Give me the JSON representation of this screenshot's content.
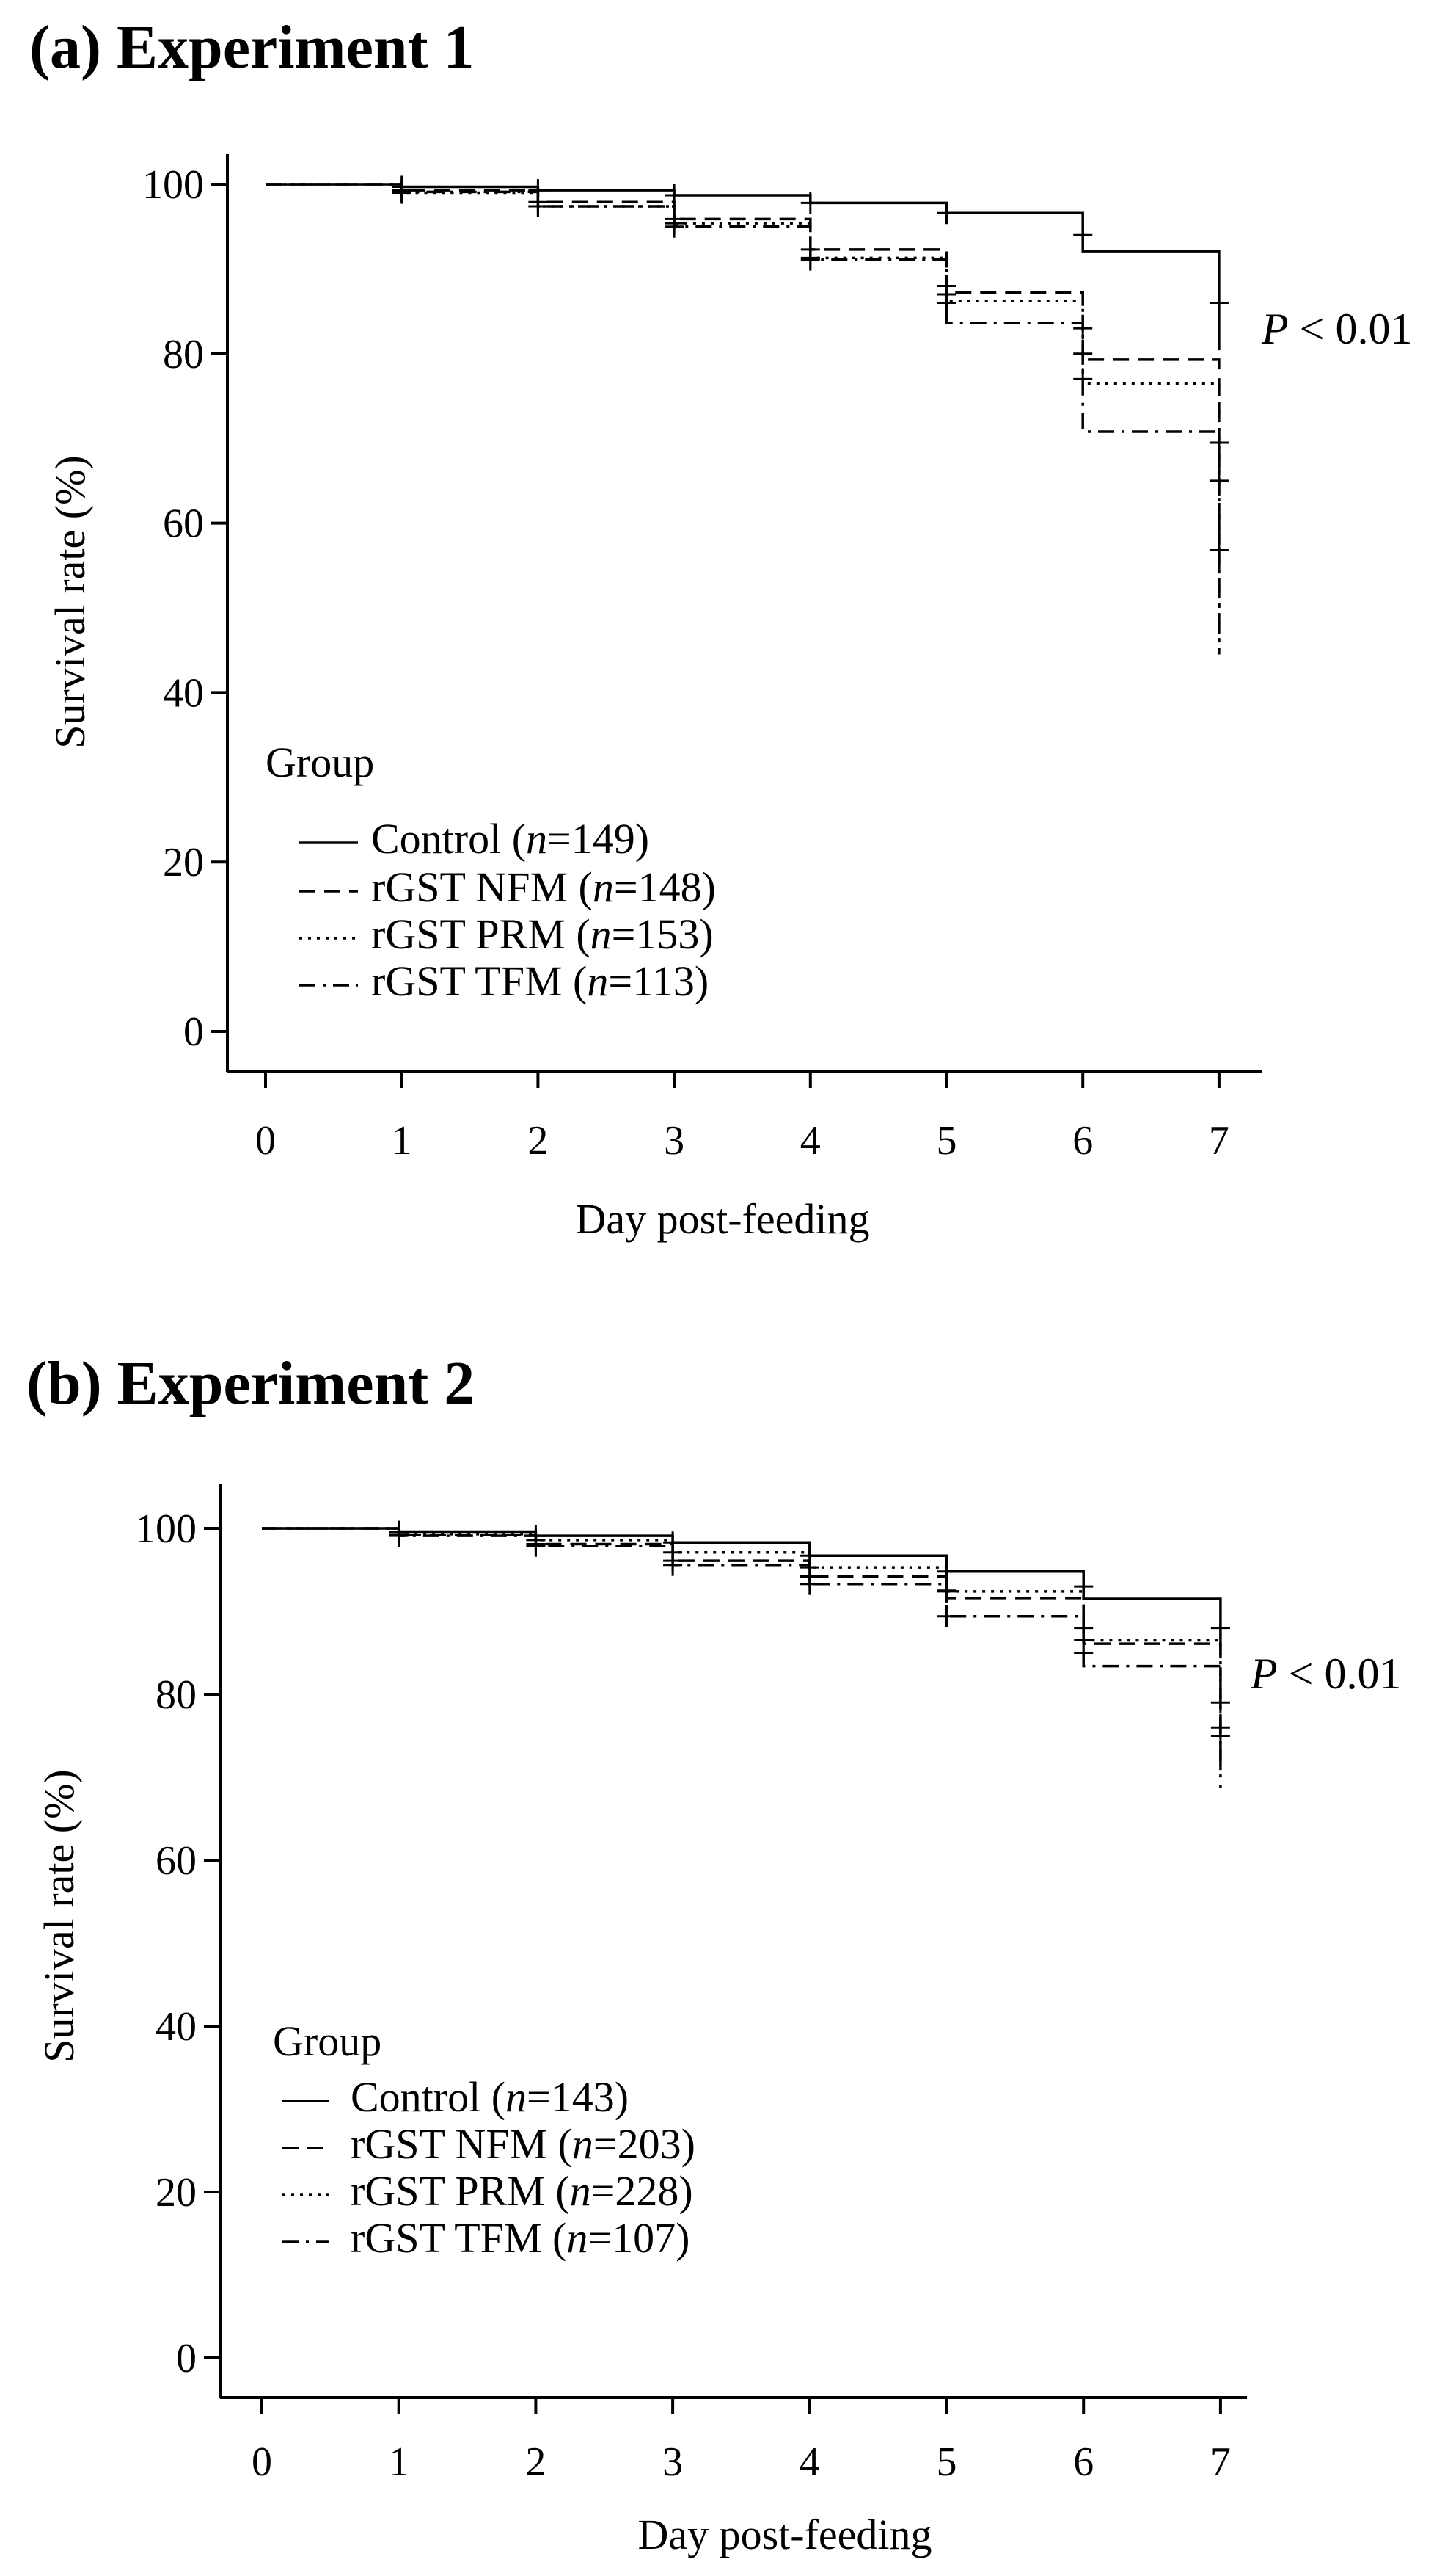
{
  "chart_data": [
    {
      "type": "line",
      "panel_title": "(a) Experiment 1",
      "xlabel": "Day post-feeding",
      "ylabel": "Survival rate (%)",
      "x_ticks": [
        "0",
        "1",
        "2",
        "3",
        "4",
        "5",
        "6",
        "7"
      ],
      "y_ticks": [
        "0",
        "20",
        "40",
        "60",
        "80",
        "100"
      ],
      "xlim": [
        0,
        7
      ],
      "ylim": [
        0,
        100
      ],
      "annotation": {
        "italic": "P",
        "rest": " < 0.01"
      },
      "legend_title": "Group",
      "series": [
        {
          "name": "Control",
          "n_label": "149",
          "style": "solid",
          "x": [
            0,
            1,
            2,
            3,
            4,
            5,
            6,
            7,
            7
          ],
          "y": [
            100,
            99.7,
            99.3,
            98.7,
            97.8,
            96.6,
            92.1,
            80.4,
            80.4
          ],
          "censor_x": [
            1,
            2,
            3,
            4,
            5,
            6,
            7
          ],
          "censor_y": [
            99.7,
            99.3,
            98.7,
            97.8,
            96.6,
            94,
            86
          ]
        },
        {
          "name": "rGST NFM",
          "n_label": "148",
          "style": "dashed",
          "x": [
            0,
            1,
            2,
            3,
            4,
            5,
            6,
            7,
            7
          ],
          "y": [
            100,
            99.3,
            97.9,
            95.9,
            92.3,
            87.2,
            79.3,
            50,
            50
          ],
          "censor_x": [
            1,
            2,
            3,
            4,
            5,
            6
          ],
          "censor_y": [
            99.3,
            97.9,
            95.9,
            92.3,
            88,
            83
          ]
        },
        {
          "name": "rGST PRM",
          "n_label": "153",
          "style": "dotted",
          "x": [
            0,
            1,
            2,
            3,
            4,
            5,
            6,
            7,
            7
          ],
          "y": [
            100,
            99,
            97.4,
            95.4,
            91.3,
            86.2,
            76.5,
            45,
            45
          ],
          "censor_x": [
            1,
            2,
            3,
            4,
            5,
            6,
            7
          ],
          "censor_y": [
            99,
            97.4,
            95.4,
            91.3,
            87,
            80,
            65
          ]
        },
        {
          "name": "rGST TFM",
          "n_label": "113",
          "style": "dashdot",
          "x": [
            0,
            1,
            2,
            3,
            4,
            5,
            6,
            7,
            7
          ],
          "y": [
            100,
            99.1,
            97.4,
            95,
            91.1,
            83.6,
            70.8,
            44.5,
            44.5
          ],
          "censor_x": [
            1,
            2,
            3,
            4,
            5,
            6,
            7,
            7
          ],
          "censor_y": [
            99.1,
            97.4,
            95,
            91.1,
            86,
            77,
            69.5,
            56.8
          ]
        }
      ]
    },
    {
      "type": "line",
      "panel_title": "(b) Experiment 2",
      "xlabel": "Day post-feeding",
      "ylabel": "Survival rate (%)",
      "x_ticks": [
        "0",
        "1",
        "2",
        "3",
        "4",
        "5",
        "6",
        "7"
      ],
      "y_ticks": [
        "0",
        "20",
        "40",
        "60",
        "80",
        "100"
      ],
      "xlim": [
        0,
        7
      ],
      "ylim": [
        0,
        100
      ],
      "annotation": {
        "italic": "P",
        "rest": " < 0.01"
      },
      "legend_title": "Group",
      "series": [
        {
          "name": "Control",
          "n_label": "143",
          "style": "solid",
          "x": [
            0,
            1,
            2,
            3,
            4,
            5,
            6,
            7,
            7
          ],
          "y": [
            100,
            99.6,
            99.1,
            98.3,
            96.7,
            94.8,
            91.5,
            85.2,
            85.2
          ],
          "censor_x": [
            1,
            2,
            3,
            4,
            5,
            6,
            7
          ],
          "censor_y": [
            99.6,
            99.1,
            98.3,
            96.7,
            94.8,
            93,
            88
          ]
        },
        {
          "name": "rGST NFM",
          "n_label": "203",
          "style": "dashed",
          "x": [
            0,
            1,
            2,
            3,
            4,
            5,
            6,
            7,
            7
          ],
          "y": [
            100,
            99.2,
            98.1,
            96.1,
            94.2,
            91.6,
            86.1,
            72,
            72
          ],
          "censor_x": [
            1,
            2,
            3,
            4,
            5,
            6,
            7
          ],
          "censor_y": [
            99.2,
            98.1,
            96.1,
            94.2,
            92.5,
            88,
            79
          ]
        },
        {
          "name": "rGST PRM",
          "n_label": "228",
          "style": "dotted",
          "x": [
            0,
            1,
            2,
            3,
            4,
            5,
            6,
            7,
            7
          ],
          "y": [
            100,
            99.3,
            98.6,
            97.1,
            95.3,
            92.4,
            86.5,
            70,
            70
          ],
          "censor_x": [
            1,
            2,
            3,
            4,
            5,
            6,
            7
          ],
          "censor_y": [
            99.3,
            98.6,
            97.1,
            95.3,
            92.4,
            86.5,
            76
          ]
        },
        {
          "name": "rGST TFM",
          "n_label": "107",
          "style": "dashdot",
          "x": [
            0,
            1,
            2,
            3,
            4,
            5,
            6,
            7,
            7
          ],
          "y": [
            100,
            99.1,
            97.9,
            95.6,
            93.3,
            89.4,
            83.4,
            68.7,
            68.7
          ],
          "censor_x": [
            1,
            2,
            3,
            4,
            5,
            6,
            7
          ],
          "censor_y": [
            99.1,
            97.9,
            95.6,
            93.3,
            89.4,
            85,
            75
          ]
        }
      ]
    }
  ]
}
